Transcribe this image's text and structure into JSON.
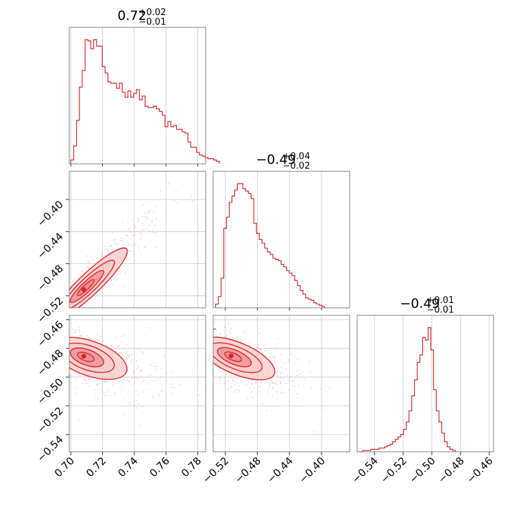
{
  "colors": {
    "line": "#d62728",
    "fill_outer": "#f8c9cb",
    "fill_inner": "#ec8c91",
    "scatter": "#f2a7ab",
    "grid": "#c8c8c8",
    "frame": "#808080"
  },
  "chart_data": {
    "type": "corner",
    "grid": true,
    "parameters": [
      {
        "range": [
          0.699,
          0.785
        ],
        "ticks": [
          "0.70",
          "0.72",
          "0.74",
          "0.76",
          "0.78"
        ],
        "tick_values": [
          0.7,
          0.72,
          0.74,
          0.76,
          0.78
        ],
        "title": {
          "median": "0.72",
          "plus": "+0.02",
          "minus": "−0.01"
        },
        "histogram": {
          "bin_edges_start": 0.7,
          "bin_width": 0.0018,
          "counts": [
            3,
            14,
            34,
            60,
            73,
            97,
            96,
            90,
            97,
            92,
            92,
            76,
            71,
            64,
            63,
            63,
            59,
            63,
            56,
            52,
            57,
            52,
            55,
            58,
            50,
            53,
            45,
            44,
            44,
            45,
            43,
            41,
            38,
            29,
            33,
            29,
            30,
            27,
            27,
            25,
            24,
            17,
            13,
            13,
            9,
            7,
            6,
            5,
            4,
            4,
            3,
            2
          ]
        }
      },
      {
        "range": [
          -0.535,
          -0.365
        ],
        "ticks": [
          "−0.52",
          "−0.48",
          "−0.44",
          "−0.40"
        ],
        "tick_values": [
          -0.52,
          -0.48,
          -0.44,
          -0.4
        ],
        "title": {
          "median": "−0.49",
          "plus": "+0.04",
          "minus": "−0.02"
        },
        "histogram": {
          "bin_edges_start": -0.532,
          "bin_width": 0.0034,
          "counts": [
            3,
            9,
            24,
            64,
            73,
            85,
            90,
            95,
            100,
            100,
            96,
            94,
            92,
            88,
            68,
            60,
            55,
            52,
            48,
            45,
            43,
            40,
            39,
            38,
            35,
            33,
            30,
            28,
            26,
            22,
            18,
            14,
            11,
            8,
            7,
            6,
            4,
            3,
            2,
            1
          ]
        }
      },
      {
        "range": [
          -0.552,
          -0.457
        ],
        "ticks": [
          "−0.54",
          "−0.52",
          "−0.50",
          "−0.48",
          "−0.46"
        ],
        "tick_values": [
          -0.54,
          -0.52,
          -0.5,
          -0.48,
          -0.46
        ],
        "title": {
          "median": "−0.49",
          "plus": "+0.01",
          "minus": "−0.01"
        },
        "histogram": {
          "bin_edges_start": -0.552,
          "bin_width": 0.0019,
          "counts": [
            0,
            0,
            1,
            1,
            1,
            2,
            2,
            2,
            3,
            3,
            4,
            5,
            6,
            8,
            10,
            12,
            14,
            18,
            24,
            33,
            45,
            58,
            72,
            78,
            92,
            90,
            100,
            82,
            50,
            33,
            24,
            15,
            8,
            4,
            2,
            1
          ]
        }
      }
    ],
    "pairs": [
      {
        "x_param": 0,
        "y_param": 1,
        "correlation": 0.94,
        "x_center": 0.712,
        "x_spread": 0.011,
        "y_center": -0.505,
        "y_spread": 0.022
      },
      {
        "x_param": 0,
        "y_param": 2,
        "correlation": -0.55,
        "x_center": 0.712,
        "x_spread": 0.011,
        "y_center": -0.487,
        "y_spread": 0.008
      },
      {
        "x_param": 1,
        "y_param": 2,
        "correlation": -0.65,
        "x_center": -0.505,
        "x_spread": 0.022,
        "y_center": -0.487,
        "y_spread": 0.008
      }
    ]
  }
}
